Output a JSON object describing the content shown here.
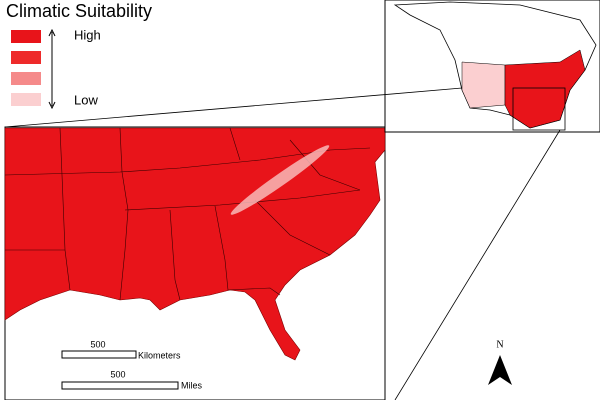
{
  "legend": {
    "title": "Climatic Suitability",
    "high": "High",
    "low": "Low",
    "swatch_colors": [
      "#e8141a",
      "#ee2a2a",
      "#f58a8a",
      "#fbcfd0"
    ]
  },
  "scale_bars": [
    {
      "value": "500",
      "unit": "Kilometers"
    },
    {
      "value": "500",
      "unit": "Miles"
    }
  ],
  "north_arrow": "N"
}
